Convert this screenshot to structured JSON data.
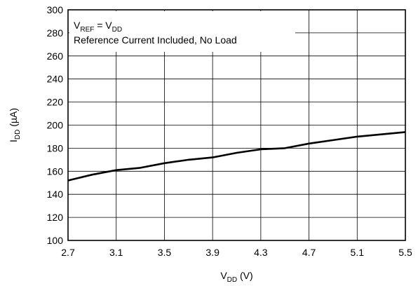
{
  "chart_data": {
    "type": "line",
    "title": "",
    "annotation": {
      "line1": {
        "main": "V",
        "sub1": "REF",
        "mid": " = V",
        "sub2": "DD"
      },
      "line2": "Reference Current Included, No Load"
    },
    "xlabel": {
      "main": "V",
      "sub": "DD",
      "rest": " (V)"
    },
    "ylabel": {
      "main": "I",
      "sub": "DD",
      "rest": " (µA)"
    },
    "xlim": [
      2.7,
      5.5
    ],
    "ylim": [
      100,
      300
    ],
    "x_ticks": [
      "2.7",
      "3.1",
      "3.5",
      "3.9",
      "4.3",
      "4.7",
      "5.1",
      "5.5"
    ],
    "y_ticks": [
      "100",
      "120",
      "140",
      "160",
      "180",
      "200",
      "220",
      "240",
      "260",
      "280",
      "300"
    ],
    "grid": true,
    "legend": "none",
    "series": [
      {
        "color": "#000000",
        "x": [
          2.7,
          2.9,
          3.1,
          3.3,
          3.5,
          3.7,
          3.9,
          4.1,
          4.3,
          4.5,
          4.7,
          4.9,
          5.1,
          5.3,
          5.5
        ],
        "y": [
          152,
          157,
          161,
          163,
          167,
          170,
          172,
          176,
          179,
          180,
          184,
          187,
          190,
          192,
          194
        ]
      }
    ]
  }
}
